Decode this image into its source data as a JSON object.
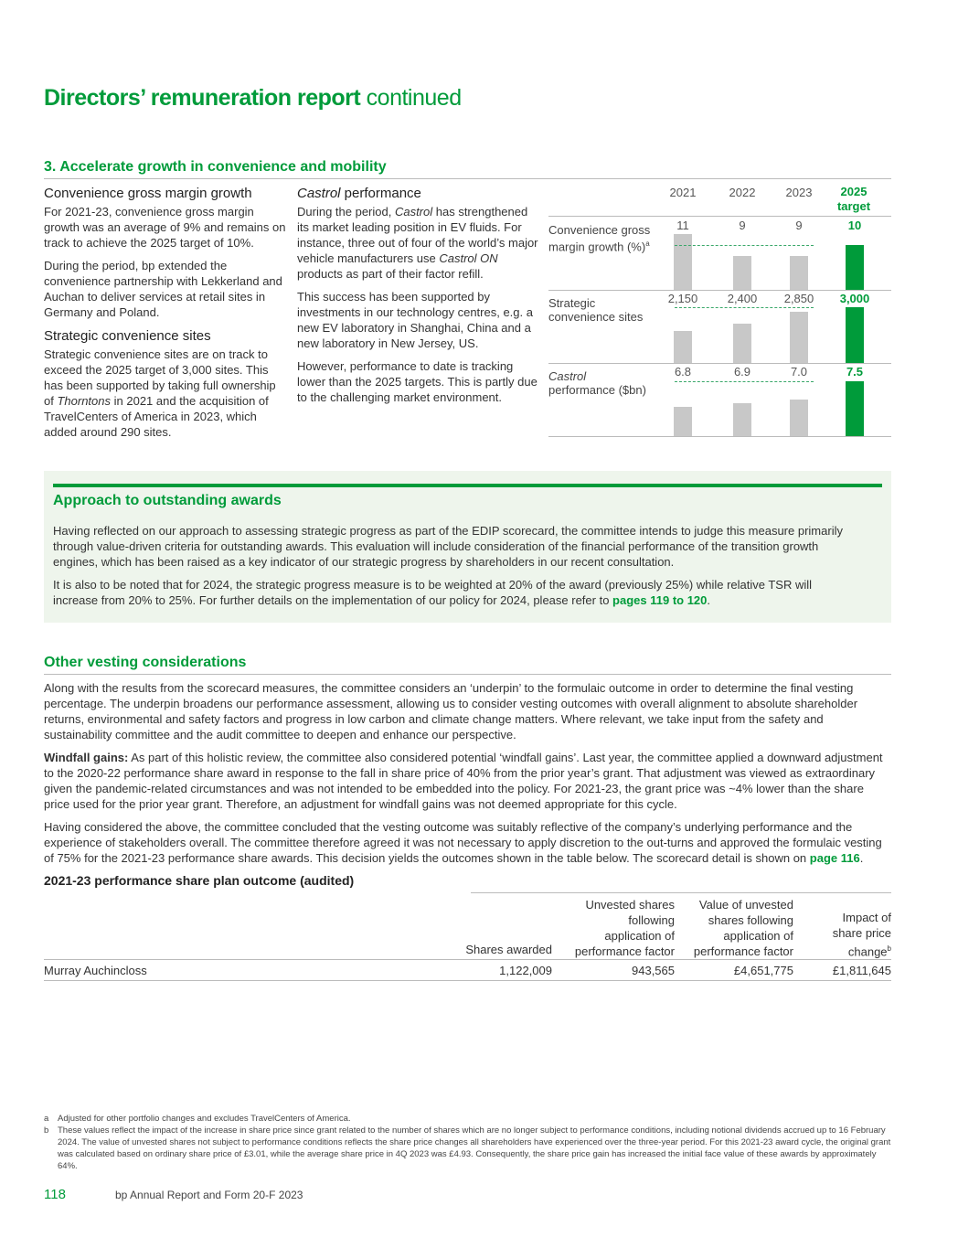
{
  "header": {
    "title": "Directors’ remuneration report",
    "title_suffix": "continued"
  },
  "section3": {
    "title": "3. Accelerate growth in convenience and mobility",
    "col1": {
      "h1": "Convenience gross margin growth",
      "p1": "For 2021-23, convenience gross margin growth was an average of 9% and remains on track to achieve the 2025 target of 10%.",
      "p2": "During the period, bp extended the convenience partnership with Lekkerland and Auchan to deliver services at retail sites in Germany and Poland.",
      "h2": "Strategic convenience sites",
      "p3a": "Strategic convenience sites are on track to exceed the 2025 target of 3,000 sites. This has been supported by taking full ownership of ",
      "p3b": "Thorntons",
      "p3c": " in 2021 and the acquisition of TravelCenters of America in 2023, which added around 290 sites."
    },
    "col2": {
      "h_italic": "Castrol",
      "h_rest": " performance",
      "p1a": "During the period, ",
      "p1b": "Castrol",
      "p1c": " has strengthened its market leading position in EV fluids. For instance, three out of four of the world’s major vehicle manufacturers use ",
      "p1d": "Castrol ON",
      "p1e": " products as part of their factor refill.",
      "p2": "This success has been supported by investments in our technology centres, e.g. a new EV laboratory in Shanghai, China and a new laboratory in New Jersey, US.",
      "p3": "However, performance to date is tracking lower than the 2025 targets. This is partly due to the challenging market environment."
    }
  },
  "chart_data": {
    "type": "bar",
    "categories": [
      "2021",
      "2022",
      "2023",
      "2025 target"
    ],
    "target_label_line1": "2025",
    "target_label_line2": "target",
    "rows": [
      {
        "label": "Convenience gross margin growth (%)",
        "footnote": "a",
        "values": [
          11,
          9,
          9,
          10
        ],
        "labels": [
          "11",
          "9",
          "9",
          "10"
        ]
      },
      {
        "label": "Strategic convenience sites",
        "values": [
          2150,
          2400,
          2850,
          3000
        ],
        "labels": [
          "2,150",
          "2,400",
          "2,850",
          "3,000"
        ]
      },
      {
        "label_italic": "Castrol",
        "label": "performance ($bn)",
        "values": [
          6.8,
          6.9,
          7.0,
          7.5
        ],
        "labels": [
          "6.8",
          "6.9",
          "7.0",
          "7.5"
        ]
      }
    ],
    "colors": {
      "actual": "#c8c8c8",
      "target": "#009b3a"
    }
  },
  "approach": {
    "title": "Approach to outstanding awards",
    "p1": "Having reflected on our approach to assessing strategic progress as part of the EDIP scorecard, the committee intends to judge this measure primarily through value-driven criteria for outstanding awards. This evaluation will include consideration of the financial performance of the transition growth engines, which has been raised as a key indicator of our strategic progress by shareholders in our recent consultation.",
    "p2": "It is also to be noted that for 2024, the strategic progress measure is to be weighted at 20% of the award (previously 25%) while relative TSR will increase from 20% to 25%. For further details on the implementation of our policy for 2024, please refer to ",
    "p2_link": "pages 119 to 120",
    "p2_end": "."
  },
  "vesting": {
    "title": "Other vesting considerations",
    "p1": "Along with the results from the scorecard measures, the committee considers an ‘underpin’ to the formulaic outcome in order to determine the final vesting percentage. The underpin broadens our performance assessment, allowing us to consider vesting outcomes with overall alignment to absolute shareholder returns, environmental and safety factors and progress in low carbon and climate change matters. Where relevant, we take input from the safety and sustainability committee and the audit committee to deepen and enhance our perspective.",
    "p2_bold": "Windfall gains:",
    "p2": " As part of this holistic review, the committee also considered potential ‘windfall gains’. Last year, the committee applied a downward adjustment to the 2020-22 performance share award in response to the fall in share price of 40% from the prior year’s grant. That adjustment was viewed as extraordinary given the pandemic-related circumstances and was not intended to be embedded into the policy. For 2021-23, the grant price was ~4% lower than the share price used for the prior year grant. Therefore, an adjustment for windfall gains was not deemed appropriate for this cycle.",
    "p3": "Having considered the above, the committee concluded that the vesting outcome was suitably reflective of the company’s underlying performance and the experience of stakeholders overall. The committee therefore agreed it was not necessary to apply discretion to the out-turns and approved the formulaic vesting of 75% for the 2021-23 performance share awards. This decision yields the outcomes shown in the table below. The scorecard detail is shown on ",
    "p3_link": "page 116",
    "p3_end": "."
  },
  "table": {
    "title": "2021-23 performance share plan outcome (audited)",
    "headers": [
      "Shares awarded",
      "Unvested shares following application of performance factor",
      "Value of unvested shares following application of performance factor",
      "Impact of share price change"
    ],
    "header_footnote": "b",
    "rows": [
      {
        "name": "Murray Auchincloss",
        "values": [
          "1,122,009",
          "943,565",
          "£4,651,775",
          "£1,811,645"
        ]
      }
    ]
  },
  "footnotes": [
    {
      "mark": "a",
      "text": "Adjusted for other portfolio changes and excludes TravelCenters of America."
    },
    {
      "mark": "b",
      "text": "These values reflect the impact of the increase in share price since grant related to the number of shares which are no longer subject to performance conditions, including notional dividends accrued up to 16 February 2024. The value of unvested shares not subject to performance conditions reflects the share price changes all shareholders have experienced over the three-year period. For this 2021-23 award cycle, the original grant was calculated based on ordinary share price of £3.01, while the average share price in 4Q 2023 was £4.93. Consequently, the share price gain has increased the initial face value of these awards by approximately 64%."
    }
  ],
  "footer": {
    "page": "118",
    "doc": "bp Annual Report and Form 20-F 2023"
  }
}
